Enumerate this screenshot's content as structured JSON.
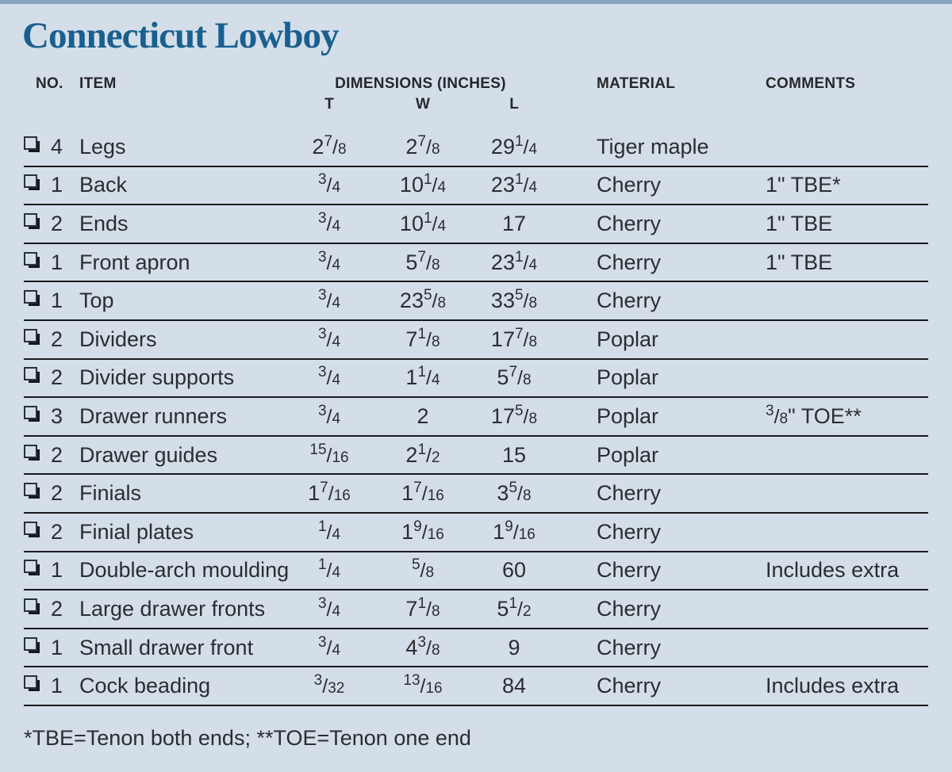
{
  "page": {
    "title": "Connecticut Lowboy",
    "background_color": "#d4dee9",
    "top_bar_color": "#8aa5c4",
    "title_color": "#19608f",
    "rule_color": "#1a1b1d",
    "checkbox_icon": "shadowed-white-square"
  },
  "table": {
    "headers": {
      "no": "NO.",
      "item": "ITEM",
      "dimensions": "DIMENSIONS (INCHES)",
      "t": "T",
      "w": "W",
      "l": "L",
      "material": "MATERIAL",
      "comments": "COMMENTS"
    },
    "rows": [
      {
        "qty": "4",
        "item": "Legs",
        "t": "2 7/8",
        "w": "2 7/8",
        "l": "29 1/4",
        "material": "Tiger maple",
        "comments": ""
      },
      {
        "qty": "1",
        "item": "Back",
        "t": "3/4",
        "w": "10 1/4",
        "l": "23 1/4",
        "material": "Cherry",
        "comments": "1\" TBE*"
      },
      {
        "qty": "2",
        "item": "Ends",
        "t": "3/4",
        "w": "10 1/4",
        "l": "17",
        "material": "Cherry",
        "comments": "1\" TBE"
      },
      {
        "qty": "1",
        "item": "Front apron",
        "t": "3/4",
        "w": "5 7/8",
        "l": "23 1/4",
        "material": "Cherry",
        "comments": "1\" TBE"
      },
      {
        "qty": "1",
        "item": "Top",
        "t": "3/4",
        "w": "23 5/8",
        "l": "33 5/8",
        "material": "Cherry",
        "comments": ""
      },
      {
        "qty": "2",
        "item": "Dividers",
        "t": "3/4",
        "w": "7 1/8",
        "l": "17 7/8",
        "material": "Poplar",
        "comments": ""
      },
      {
        "qty": "2",
        "item": "Divider supports",
        "t": "3/4",
        "w": "1 1/4",
        "l": "5 7/8",
        "material": "Poplar",
        "comments": ""
      },
      {
        "qty": "3",
        "item": "Drawer runners",
        "t": "3/4",
        "w": "2",
        "l": "17 5/8",
        "material": "Poplar",
        "comments": "3/8\" TOE**"
      },
      {
        "qty": "2",
        "item": "Drawer guides",
        "t": "15/16",
        "w": "2 1/2",
        "l": "15",
        "material": "Poplar",
        "comments": ""
      },
      {
        "qty": "2",
        "item": "Finials",
        "t": "1 7/16",
        "w": "1 7/16",
        "l": "3 5/8",
        "material": "Cherry",
        "comments": ""
      },
      {
        "qty": "2",
        "item": "Finial plates",
        "t": "1/4",
        "w": "1 9/16",
        "l": "1 9/16",
        "material": "Cherry",
        "comments": ""
      },
      {
        "qty": "1",
        "item": "Double-arch moulding",
        "t": "1/4",
        "w": "5/8",
        "l": "60",
        "material": "Cherry",
        "comments": "Includes extra"
      },
      {
        "qty": "2",
        "item": "Large drawer fronts",
        "t": "3/4",
        "w": "7 1/8",
        "l": "5 1/2",
        "material": "Cherry",
        "comments": ""
      },
      {
        "qty": "1",
        "item": "Small drawer front",
        "t": "3/4",
        "w": "4 3/8",
        "l": "9",
        "material": "Cherry",
        "comments": ""
      },
      {
        "qty": "1",
        "item": "Cock beading",
        "t": "3/32",
        "w": "13/16",
        "l": "84",
        "material": "Cherry",
        "comments": "Includes extra"
      }
    ],
    "footnote": "*TBE=Tenon both ends; **TOE=Tenon one end"
  }
}
